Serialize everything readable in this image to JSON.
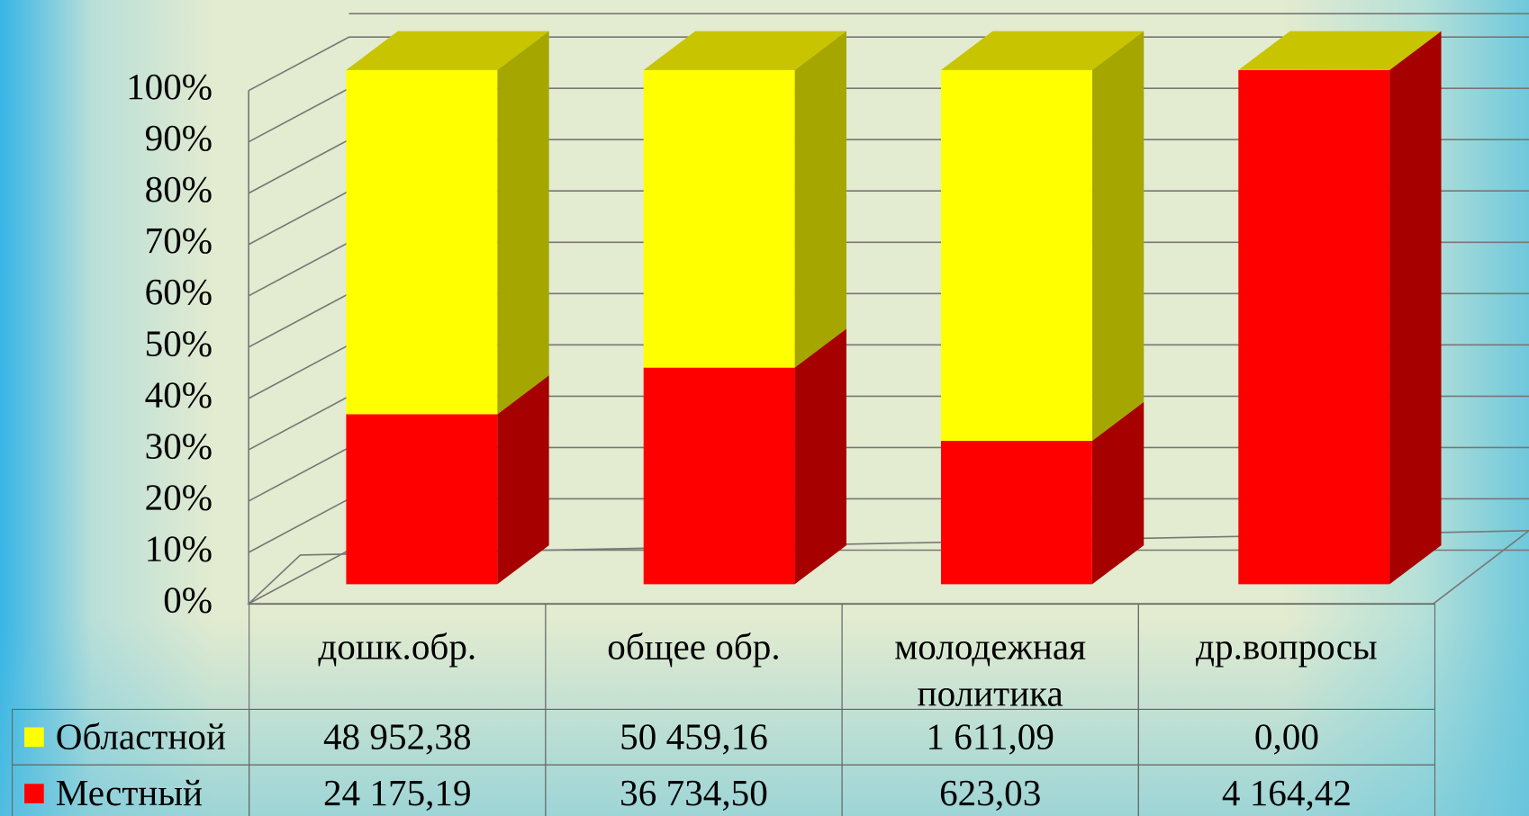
{
  "chart_data": {
    "type": "bar",
    "stacking": "percent",
    "categories": [
      "дошк.обр.",
      "общее обр.",
      "молодежная политика",
      "др.вопросы"
    ],
    "series": [
      {
        "name": "Местный",
        "color": "#ff0000",
        "side_color": "#a60000",
        "values": [
          24175.19,
          36734.5,
          623.03,
          4164.42
        ],
        "value_labels": [
          "24 175,19",
          "36 734,50",
          "623,03",
          "4 164,42"
        ]
      },
      {
        "name": "Областной",
        "color": "#ffff00",
        "side_color": "#a6a600",
        "values": [
          48952.38,
          50459.16,
          1611.09,
          0.0
        ],
        "value_labels": [
          "48 952,38",
          "50 459,16",
          "1 611,09",
          "0,00"
        ]
      }
    ],
    "ylim": [
      0,
      100
    ],
    "yticks": [
      {
        "value": 0,
        "label": "0%"
      },
      {
        "value": 10,
        "label": "10%"
      },
      {
        "value": 20,
        "label": "20%"
      },
      {
        "value": 30,
        "label": "30%"
      },
      {
        "value": 40,
        "label": "40%"
      },
      {
        "value": 50,
        "label": "50%"
      },
      {
        "value": 60,
        "label": "60%"
      },
      {
        "value": 70,
        "label": "70%"
      },
      {
        "value": 80,
        "label": "80%"
      },
      {
        "value": 90,
        "label": "90%"
      },
      {
        "value": 100,
        "label": "100%"
      }
    ],
    "grid": true,
    "legend": "table"
  }
}
